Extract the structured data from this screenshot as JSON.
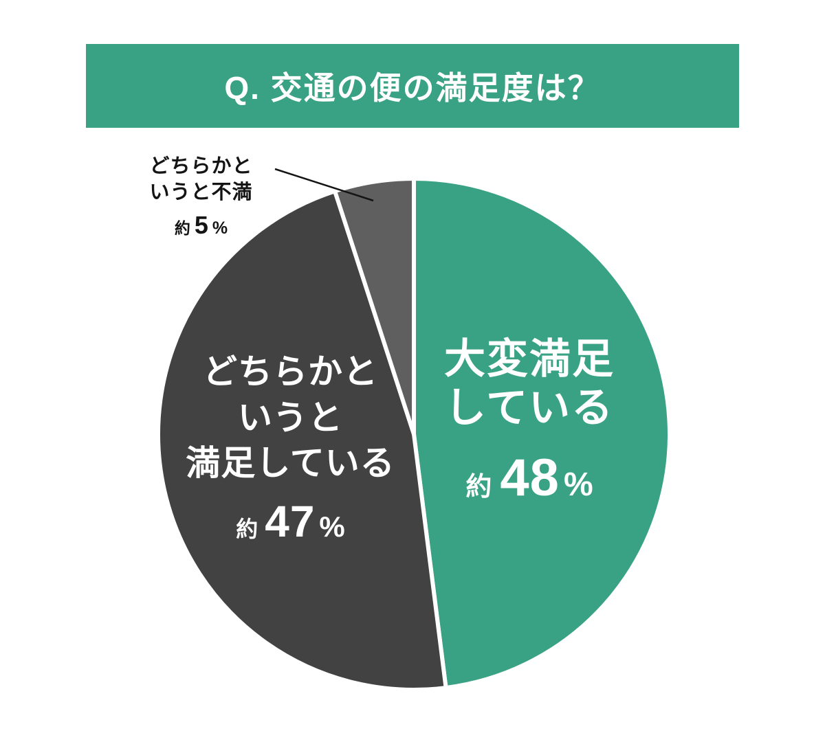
{
  "header": {
    "title": "Q. 交通の便の満足度は？"
  },
  "chart_data": {
    "type": "pie",
    "title": "Q. 交通の便の満足度は？",
    "start_angle_deg": -90,
    "direction": "clockwise",
    "unit": "%",
    "legend": "none",
    "background": "#FFFFFF",
    "banner_color": "#3AA284",
    "slices": [
      {
        "name": "very-satisfied",
        "label": "大変満足している",
        "label_lines": [
          "大変満足",
          "している"
        ],
        "approx_prefix": "約",
        "value": 48,
        "percent_sign": "%",
        "color": "#3AA284",
        "text_color": "#FFFFFF",
        "label_position": "inside"
      },
      {
        "name": "somewhat-satisfied",
        "label": "どちらかというと満足している",
        "label_lines": [
          "どちらかと",
          "いうと",
          "満足している"
        ],
        "approx_prefix": "約",
        "value": 47,
        "percent_sign": "%",
        "color": "#424242",
        "text_color": "#FFFFFF",
        "label_position": "inside"
      },
      {
        "name": "somewhat-dissatisfied",
        "label": "どちらかというと不満",
        "label_lines": [
          "どちらかと",
          "いうと不満"
        ],
        "approx_prefix": "約",
        "value": 5,
        "percent_sign": "%",
        "color": "#5F5F5F",
        "text_color": "#141414",
        "label_position": "outside-callout"
      }
    ]
  }
}
